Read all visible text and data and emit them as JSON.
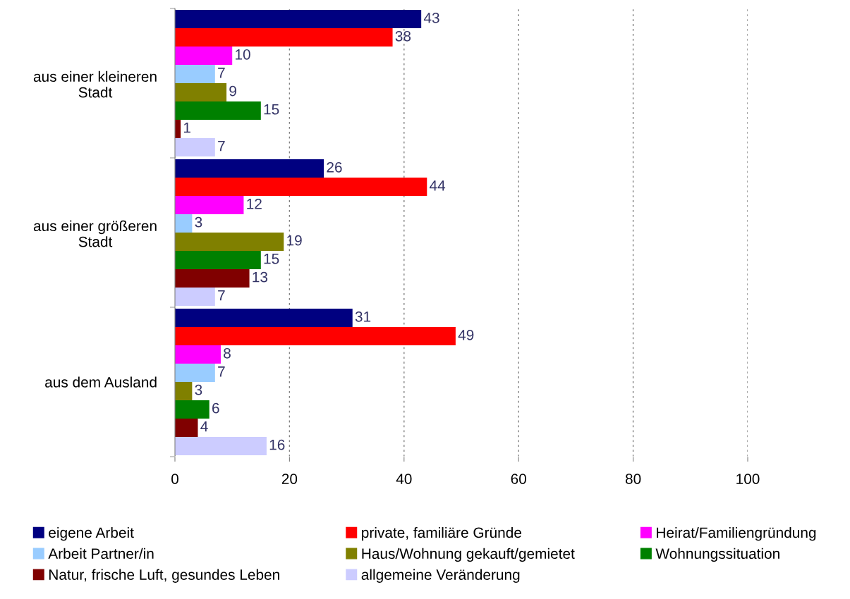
{
  "chart_data": {
    "type": "bar",
    "orientation": "horizontal",
    "categories": [
      "aus einer kleineren\nStadt",
      "aus einer größeren\nStadt",
      "aus dem Ausland"
    ],
    "series": [
      {
        "name": "eigene Arbeit",
        "color": "#000080",
        "values": [
          43,
          26,
          31
        ]
      },
      {
        "name": "private, familiäre Gründe",
        "color": "#ff0000",
        "values": [
          38,
          44,
          49
        ]
      },
      {
        "name": "Heirat/Familiengründung",
        "color": "#ff00ff",
        "values": [
          10,
          12,
          8
        ]
      },
      {
        "name": "Arbeit Partner/in",
        "color": "#99ccff",
        "values": [
          7,
          3,
          7
        ]
      },
      {
        "name": "Haus/Wohnung gekauft/gemietet",
        "color": "#808000",
        "values": [
          9,
          19,
          3
        ]
      },
      {
        "name": "Wohnungssituation",
        "color": "#008000",
        "values": [
          15,
          15,
          6
        ]
      },
      {
        "name": "Natur, frische Luft, gesundes Leben",
        "color": "#800000",
        "values": [
          1,
          13,
          4
        ]
      },
      {
        "name": "allgemeine Veränderung",
        "color": "#ccccff",
        "values": [
          7,
          7,
          16
        ]
      }
    ],
    "xlim": [
      0,
      100
    ],
    "xticks": [
      0,
      20,
      40,
      60,
      80,
      100
    ],
    "grid": "x",
    "legend": "bottom",
    "data_labels": true
  }
}
